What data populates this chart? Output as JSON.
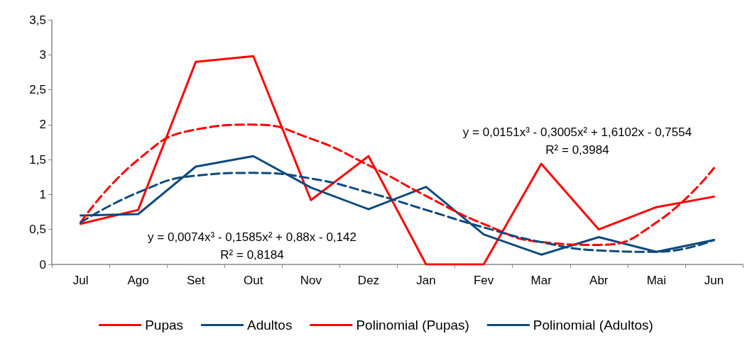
{
  "chart_data": {
    "type": "line",
    "categories": [
      "Jul",
      "Ago",
      "Set",
      "Out",
      "Nov",
      "Dez",
      "Jan",
      "Fev",
      "Mar",
      "Abr",
      "Mai",
      "Jun"
    ],
    "series": [
      {
        "name": "Pupas",
        "color": "#ff0000",
        "line_style": "solid",
        "values": [
          0.58,
          0.78,
          2.9,
          2.98,
          0.92,
          1.55,
          0,
          0,
          1.44,
          0.5,
          0.82,
          0.97
        ]
      },
      {
        "name": "Adultos",
        "color": "#0e4a7e",
        "line_style": "solid",
        "values": [
          0.7,
          0.72,
          1.4,
          1.55,
          1.1,
          0.79,
          1.11,
          0.43,
          0.14,
          0.39,
          0.18,
          0.35
        ]
      },
      {
        "name": "Polinomial (Pupas)",
        "color": "#ff0000",
        "line_style": "dashed",
        "values": [
          0.6,
          1.5,
          1.93,
          2.0,
          1.8,
          1.42,
          0.98,
          0.58,
          0.32,
          0.28,
          0.6,
          1.38
        ]
      },
      {
        "name": "Polinomial (Adultos)",
        "color": "#0e4a7e",
        "line_style": "dashed",
        "values": [
          0.6,
          1.03,
          1.27,
          1.31,
          1.23,
          1.03,
          0.78,
          0.53,
          0.32,
          0.2,
          0.18,
          0.35
        ]
      }
    ],
    "ylim": [
      0,
      3.5
    ],
    "yticks": [
      0,
      {
        "value": 0.5,
        "label": "0,5"
      },
      1,
      {
        "value": 1.5,
        "label": "1,5"
      },
      2,
      {
        "value": 2.5,
        "label": "2,5"
      },
      3,
      {
        "value": 3.5,
        "label": "3,5"
      }
    ],
    "annotations": [
      "y = 0,0151x³ - 0,3005x² + 1,6102x - 0,7554",
      "R² = 0,3984",
      "y = 0,0074x³ - 0,1585x² + 0,88x - 0,142",
      "R² = 0,8184"
    ],
    "grid": false,
    "legend": "bottom",
    "marker": "none"
  }
}
